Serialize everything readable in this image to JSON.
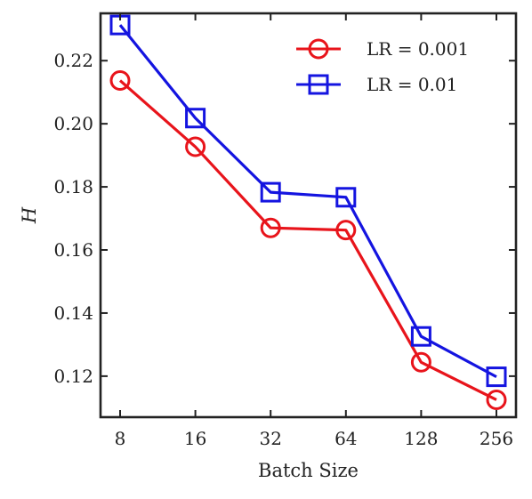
{
  "chart_data": {
    "type": "line",
    "categories": [
      "8",
      "16",
      "32",
      "64",
      "128",
      "256"
    ],
    "xlabel": "Batch Size",
    "ylabel": "H",
    "ylim": [
      0.107,
      0.235
    ],
    "yticks": [
      "0.12",
      "0.14",
      "0.16",
      "0.18",
      "0.20",
      "0.22"
    ],
    "ytick_values": [
      0.12,
      0.14,
      0.16,
      0.18,
      0.2,
      0.22
    ],
    "grid": false,
    "legend_position": "top-right",
    "series": [
      {
        "name": "LR = 0.001",
        "color": "#e8141b",
        "marker": "circle",
        "values": [
          0.2137,
          0.1927,
          0.167,
          0.1663,
          0.1244,
          0.1125
        ]
      },
      {
        "name": "LR = 0.01",
        "color": "#1414e0",
        "marker": "square",
        "values": [
          0.2313,
          0.2018,
          0.1783,
          0.1767,
          0.1326,
          0.1198
        ]
      }
    ]
  }
}
